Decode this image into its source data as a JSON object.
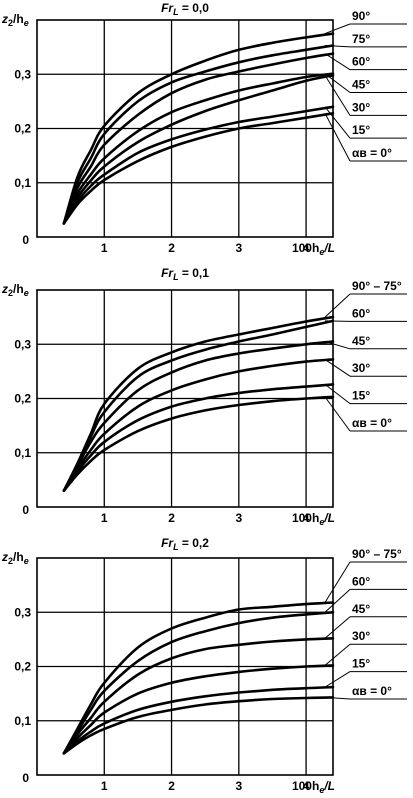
{
  "chart_data": [
    {
      "type": "line",
      "title": "Fr_L = 0,0",
      "title_main": "Fr",
      "title_sub": "L",
      "title_rest": " = 0,0",
      "ylabel": "z2/he",
      "xlabel": "100he/L",
      "x_ticks": [
        "1",
        "2",
        "3",
        "4"
      ],
      "y_ticks": [
        "0,1",
        "0,2",
        "0,3"
      ],
      "origin": "0",
      "xlim": [
        0,
        4.4
      ],
      "ylim": [
        0,
        0.4
      ],
      "grid": true,
      "series": [
        {
          "name": "90°",
          "x": [
            0.4,
            0.6,
            0.8,
            1.0,
            1.5,
            2.0,
            2.5,
            3.0,
            3.5,
            4.0,
            4.4
          ],
          "y": [
            0.025,
            0.11,
            0.16,
            0.205,
            0.265,
            0.3,
            0.325,
            0.345,
            0.358,
            0.368,
            0.375
          ]
        },
        {
          "name": "75°",
          "x": [
            0.4,
            0.6,
            0.8,
            1.0,
            1.5,
            2.0,
            2.5,
            3.0,
            3.5,
            4.0,
            4.4
          ],
          "y": [
            0.025,
            0.1,
            0.145,
            0.19,
            0.25,
            0.285,
            0.305,
            0.322,
            0.335,
            0.345,
            0.353
          ]
        },
        {
          "name": "60°",
          "x": [
            0.4,
            0.6,
            0.8,
            1.0,
            1.5,
            2.0,
            2.5,
            3.0,
            3.5,
            4.0,
            4.4
          ],
          "y": [
            0.025,
            0.09,
            0.13,
            0.17,
            0.225,
            0.265,
            0.29,
            0.305,
            0.318,
            0.33,
            0.338
          ]
        },
        {
          "name": "45°",
          "x": [
            0.4,
            0.6,
            0.8,
            1.0,
            1.5,
            2.0,
            2.5,
            3.0,
            3.5,
            4.0,
            4.4
          ],
          "y": [
            0.025,
            0.08,
            0.115,
            0.145,
            0.195,
            0.23,
            0.252,
            0.27,
            0.283,
            0.295,
            0.301
          ]
        },
        {
          "name": "30°",
          "x": [
            0.4,
            0.6,
            0.8,
            1.0,
            1.5,
            2.0,
            2.5,
            3.0,
            3.5,
            4.0,
            4.4
          ],
          "y": [
            0.025,
            0.072,
            0.104,
            0.13,
            0.175,
            0.207,
            0.232,
            0.252,
            0.27,
            0.288,
            0.298
          ]
        },
        {
          "name": "15°",
          "x": [
            0.4,
            0.6,
            0.8,
            1.0,
            1.5,
            2.0,
            2.5,
            3.0,
            3.5,
            4.0,
            4.4
          ],
          "y": [
            0.025,
            0.065,
            0.094,
            0.115,
            0.155,
            0.18,
            0.198,
            0.212,
            0.222,
            0.232,
            0.24
          ]
        },
        {
          "name": "αв = 0°",
          "x": [
            0.4,
            0.6,
            0.8,
            1.0,
            1.5,
            2.0,
            2.5,
            3.0,
            3.5,
            4.0,
            4.4
          ],
          "y": [
            0.025,
            0.06,
            0.085,
            0.105,
            0.14,
            0.166,
            0.185,
            0.2,
            0.21,
            0.22,
            0.228
          ]
        }
      ]
    },
    {
      "type": "line",
      "title": "Fr_L = 0,1",
      "title_main": "Fr",
      "title_sub": "L",
      "title_rest": " = 0,1",
      "ylabel": "z2/he",
      "xlabel": "100he/L",
      "x_ticks": [
        "1",
        "2",
        "3",
        "4"
      ],
      "y_ticks": [
        "0,1",
        "0,2",
        "0,3"
      ],
      "origin": "0",
      "xlim": [
        0,
        4.4
      ],
      "ylim": [
        0,
        0.4
      ],
      "grid": true,
      "series": [
        {
          "name": "90° – 75°",
          "x": [
            0.4,
            0.6,
            0.8,
            1.0,
            1.5,
            2.0,
            2.5,
            3.0,
            3.5,
            4.0,
            4.4
          ],
          "y": [
            0.03,
            0.08,
            0.135,
            0.19,
            0.255,
            0.285,
            0.305,
            0.318,
            0.33,
            0.342,
            0.35
          ]
        },
        {
          "name": "60°",
          "x": [
            0.4,
            0.6,
            0.8,
            1.0,
            1.5,
            2.0,
            2.5,
            3.0,
            3.5,
            4.0,
            4.4
          ],
          "y": [
            0.03,
            0.078,
            0.13,
            0.175,
            0.24,
            0.27,
            0.29,
            0.305,
            0.318,
            0.332,
            0.343
          ]
        },
        {
          "name": "45°",
          "x": [
            0.4,
            0.6,
            0.8,
            1.0,
            1.5,
            2.0,
            2.5,
            3.0,
            3.5,
            4.0,
            4.4
          ],
          "y": [
            0.03,
            0.075,
            0.12,
            0.155,
            0.215,
            0.248,
            0.27,
            0.283,
            0.292,
            0.3,
            0.305
          ]
        },
        {
          "name": "30°",
          "x": [
            0.4,
            0.6,
            0.8,
            1.0,
            1.5,
            2.0,
            2.5,
            3.0,
            3.5,
            4.0,
            4.4
          ],
          "y": [
            0.03,
            0.07,
            0.105,
            0.135,
            0.185,
            0.215,
            0.235,
            0.25,
            0.26,
            0.268,
            0.272
          ]
        },
        {
          "name": "15°",
          "x": [
            0.4,
            0.6,
            0.8,
            1.0,
            1.5,
            2.0,
            2.5,
            3.0,
            3.5,
            4.0,
            4.4
          ],
          "y": [
            0.03,
            0.065,
            0.095,
            0.12,
            0.16,
            0.185,
            0.2,
            0.21,
            0.217,
            0.222,
            0.226
          ]
        },
        {
          "name": "αв = 0°",
          "x": [
            0.4,
            0.6,
            0.8,
            1.0,
            1.5,
            2.0,
            2.5,
            3.0,
            3.5,
            4.0,
            4.4
          ],
          "y": [
            0.03,
            0.06,
            0.085,
            0.105,
            0.14,
            0.163,
            0.178,
            0.188,
            0.195,
            0.2,
            0.203
          ]
        }
      ]
    },
    {
      "type": "line",
      "title": "Fr_L = 0,2",
      "title_main": "Fr",
      "title_sub": "L",
      "title_rest": " = 0,2",
      "ylabel": "z2/he",
      "xlabel": "100he/L",
      "x_ticks": [
        "1",
        "2",
        "3",
        "4"
      ],
      "y_ticks": [
        "0,1",
        "0,2",
        "0,3"
      ],
      "origin": "0",
      "xlim": [
        0,
        4.4
      ],
      "ylim": [
        0,
        0.4
      ],
      "grid": true,
      "series": [
        {
          "name": "90° – 75°",
          "x": [
            0.4,
            0.6,
            0.8,
            1.0,
            1.5,
            2.0,
            2.5,
            3.0,
            3.5,
            4.0,
            4.4
          ],
          "y": [
            0.04,
            0.085,
            0.13,
            0.17,
            0.235,
            0.27,
            0.29,
            0.305,
            0.31,
            0.315,
            0.318
          ]
        },
        {
          "name": "60°",
          "x": [
            0.4,
            0.6,
            0.8,
            1.0,
            1.5,
            2.0,
            2.5,
            3.0,
            3.5,
            4.0,
            4.4
          ],
          "y": [
            0.04,
            0.08,
            0.12,
            0.155,
            0.21,
            0.245,
            0.265,
            0.28,
            0.29,
            0.296,
            0.3
          ]
        },
        {
          "name": "45°",
          "x": [
            0.4,
            0.6,
            0.8,
            1.0,
            1.5,
            2.0,
            2.5,
            3.0,
            3.5,
            4.0,
            4.4
          ],
          "y": [
            0.04,
            0.075,
            0.105,
            0.135,
            0.185,
            0.215,
            0.232,
            0.24,
            0.246,
            0.25,
            0.252
          ]
        },
        {
          "name": "30°",
          "x": [
            0.4,
            0.6,
            0.8,
            1.0,
            1.5,
            2.0,
            2.5,
            3.0,
            3.5,
            4.0,
            4.4
          ],
          "y": [
            0.04,
            0.068,
            0.092,
            0.115,
            0.15,
            0.17,
            0.182,
            0.19,
            0.196,
            0.2,
            0.202
          ]
        },
        {
          "name": "15°",
          "x": [
            0.4,
            0.6,
            0.8,
            1.0,
            1.5,
            2.0,
            2.5,
            3.0,
            3.5,
            4.0,
            4.4
          ],
          "y": [
            0.04,
            0.062,
            0.08,
            0.095,
            0.12,
            0.135,
            0.145,
            0.152,
            0.157,
            0.16,
            0.162
          ]
        },
        {
          "name": "αв = 0°",
          "x": [
            0.4,
            0.6,
            0.8,
            1.0,
            1.5,
            2.0,
            2.5,
            3.0,
            3.5,
            4.0,
            4.4
          ],
          "y": [
            0.04,
            0.058,
            0.073,
            0.085,
            0.107,
            0.12,
            0.13,
            0.136,
            0.14,
            0.142,
            0.143
          ]
        }
      ]
    }
  ]
}
